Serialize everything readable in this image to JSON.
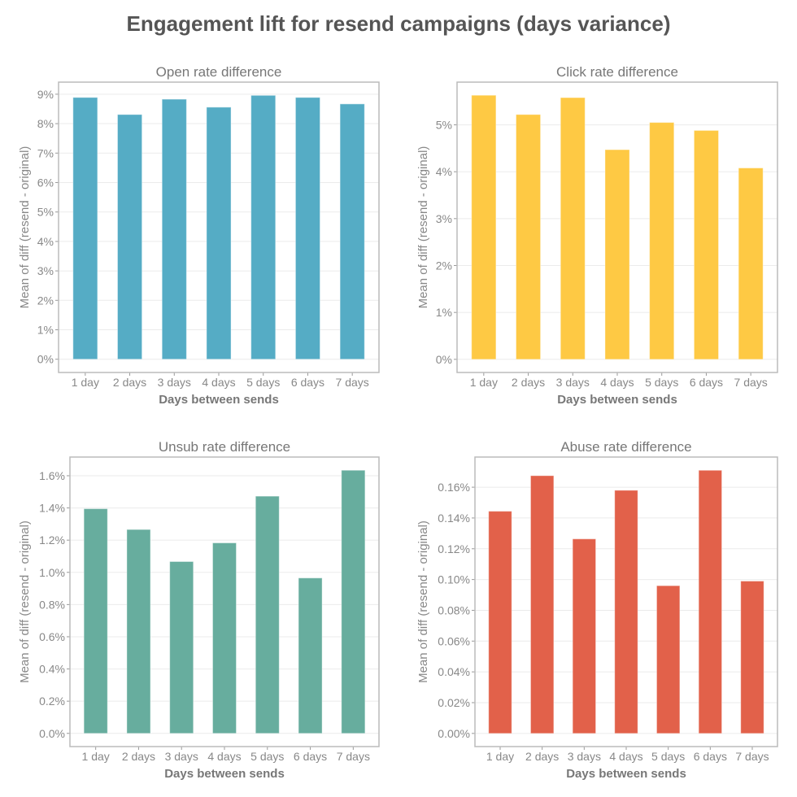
{
  "title": "Engagement lift for resend campaigns (days variance)",
  "chart_data": [
    {
      "type": "bar",
      "title": "Open rate difference",
      "xlabel": "Days between sends",
      "ylabel": "Mean of diff (resend - original)",
      "categories": [
        "1 day",
        "2 days",
        "3 days",
        "4 days",
        "5 days",
        "6 days",
        "7 days"
      ],
      "values": [
        8.89,
        8.31,
        8.83,
        8.56,
        8.96,
        8.89,
        8.67
      ],
      "unit": "%",
      "yticks": [
        0,
        1,
        2,
        3,
        4,
        5,
        6,
        7,
        8,
        9
      ],
      "ytick_labels": [
        "0%",
        "1%",
        "2%",
        "3%",
        "4%",
        "5%",
        "6%",
        "7%",
        "8%",
        "9%"
      ],
      "ylim": [
        -0.45,
        9.41
      ],
      "color": "#55acc5",
      "grid": true
    },
    {
      "type": "bar",
      "title": "Click rate difference",
      "xlabel": "Days between sends",
      "ylabel": "Mean of diff (resend - original)",
      "categories": [
        "1 day",
        "2 days",
        "3 days",
        "4 days",
        "5 days",
        "6 days",
        "7 days"
      ],
      "values": [
        5.63,
        5.22,
        5.58,
        4.47,
        5.05,
        4.88,
        4.08
      ],
      "unit": "%",
      "yticks": [
        0,
        1,
        2,
        3,
        4,
        5
      ],
      "ytick_labels": [
        "0%",
        "1%",
        "2%",
        "3%",
        "4%",
        "5%"
      ],
      "ylim": [
        -0.28,
        5.91
      ],
      "color": "#fec944",
      "grid": true
    },
    {
      "type": "bar",
      "title": "Unsub rate difference",
      "xlabel": "Days between sends",
      "ylabel": "Mean of diff (resend - original)",
      "categories": [
        "1 day",
        "2 days",
        "3 days",
        "4 days",
        "5 days",
        "6 days",
        "7 days"
      ],
      "values": [
        1.395,
        1.266,
        1.067,
        1.183,
        1.473,
        0.965,
        1.634
      ],
      "unit": "%",
      "yticks": [
        0,
        0.2,
        0.4,
        0.6,
        0.8,
        1.0,
        1.2,
        1.4,
        1.6
      ],
      "ytick_labels": [
        "0.0%",
        "0.2%",
        "0.4%",
        "0.6%",
        "0.8%",
        "1.0%",
        "1.2%",
        "1.4%",
        "1.6%"
      ],
      "ylim": [
        -0.082,
        1.716
      ],
      "color": "#67ad9e",
      "grid": true
    },
    {
      "type": "bar",
      "title": "Abuse rate difference",
      "xlabel": "Days between sends",
      "ylabel": "Mean of diff (resend - original)",
      "categories": [
        "1 day",
        "2 days",
        "3 days",
        "4 days",
        "5 days",
        "6 days",
        "7 days"
      ],
      "values": [
        0.1444,
        0.1675,
        0.1264,
        0.158,
        0.096,
        0.171,
        0.099
      ],
      "unit": "%",
      "yticks": [
        0,
        0.02,
        0.04,
        0.06,
        0.08,
        0.1,
        0.12,
        0.14,
        0.16
      ],
      "ytick_labels": [
        "0.00%",
        "0.02%",
        "0.04%",
        "0.06%",
        "0.08%",
        "0.10%",
        "0.12%",
        "0.14%",
        "0.16%"
      ],
      "ylim": [
        -0.00855,
        0.1796
      ],
      "color": "#e2614a",
      "grid": true
    }
  ]
}
